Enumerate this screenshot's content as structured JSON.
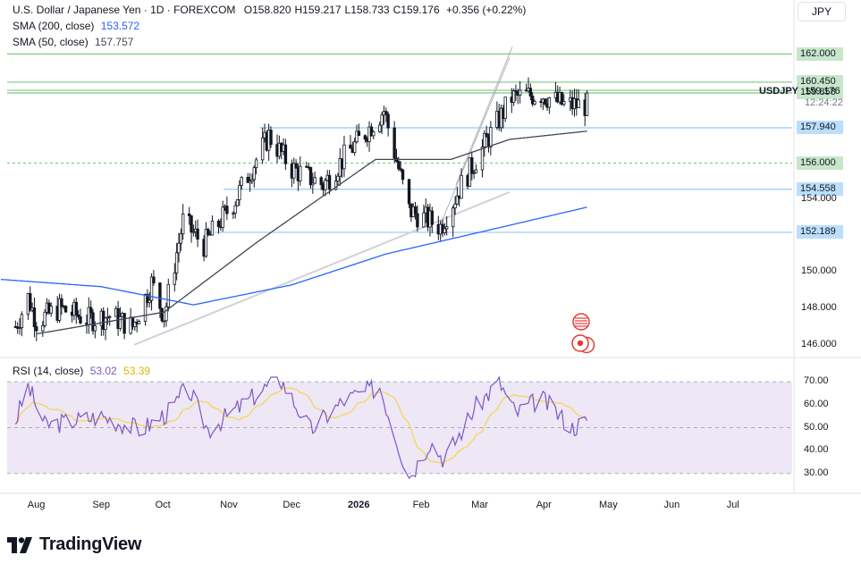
{
  "header": {
    "symbol_title": "U.S. Dollar / Japanese Yen · 1D · FOREXCOM",
    "ohlc": [
      {
        "k": "O",
        "v": "158.820"
      },
      {
        "k": "H",
        "v": "159.217"
      },
      {
        "k": "L",
        "v": "158.733"
      },
      {
        "k": "C",
        "v": "159.176"
      }
    ],
    "change": "+0.356 (+0.22%)",
    "sma200_label": "SMA (200, close)",
    "sma200_value": "153.572",
    "sma50_label": "SMA (50, close)",
    "sma50_value": "157.757"
  },
  "currency_button": "JPY",
  "price_axis": {
    "ticks": [
      "154.000",
      "150.000",
      "148.000",
      "146.000"
    ],
    "ticker": "USDJPY",
    "last_price": "159.176",
    "countdown": "12:24:22",
    "level_labels": [
      {
        "value": "162.000",
        "price": 162.0,
        "bg": "#c8e6c9"
      },
      {
        "value": "160.450",
        "price": 160.45,
        "bg": "#c8e6c9"
      },
      {
        "value": "160.000",
        "price": 160.0,
        "bg": "#c8e6c9"
      },
      {
        "value": "159.858",
        "price": 159.858,
        "bg": "#c8e6c9"
      },
      {
        "value": "157.940",
        "price": 157.94,
        "bg": "#bbdefb"
      },
      {
        "value": "156.000",
        "price": 156.0,
        "bg": "#c8e6c9"
      },
      {
        "value": "154.558",
        "price": 154.558,
        "bg": "#bbdefb"
      },
      {
        "value": "152.189",
        "price": 152.189,
        "bg": "#bbdefb"
      }
    ]
  },
  "rsi": {
    "label": "RSI (14, close)",
    "value": "53.02",
    "ma_value": "53.39",
    "ticks": [
      "70.00",
      "60.00",
      "50.00",
      "40.00",
      "30.00"
    ]
  },
  "time_axis": [
    "Aug",
    "Sep",
    "Oct",
    "Nov",
    "Dec",
    "2026",
    "Feb",
    "Mar",
    "Apr",
    "May",
    "Jun",
    "Jul"
  ],
  "branding": "TradingView",
  "colors": {
    "up": "#131722",
    "down": "#131722",
    "sma50": "#434651",
    "sma200": "#2962ff",
    "rsi_line": "#7e57c2",
    "rsi_ma": "#f7d54a",
    "green_level": "#81c784",
    "blue_level": "#90caf9",
    "rsi_band": "#ede7f6"
  },
  "chart_data": {
    "type": "candlestick",
    "title": "U.S. Dollar / Japanese Yen · 1D · FOREXCOM",
    "ylim": [
      145.5,
      163.2
    ],
    "months": [
      "Aug",
      "Sep",
      "Oct",
      "Nov",
      "Dec",
      "2026",
      "Feb",
      "Mar",
      "Apr",
      "May",
      "Jun",
      "Jul"
    ],
    "close_path": [
      {
        "date": "2025-07-22",
        "close": 147.0
      },
      {
        "date": "2025-07-28",
        "close": 148.6
      },
      {
        "date": "2025-08-01",
        "close": 147.3
      },
      {
        "date": "2025-08-12",
        "close": 148.0
      },
      {
        "date": "2025-08-26",
        "close": 147.4
      },
      {
        "date": "2025-09-05",
        "close": 147.6
      },
      {
        "date": "2025-09-16",
        "close": 147.0
      },
      {
        "date": "2025-09-25",
        "close": 149.4
      },
      {
        "date": "2025-10-01",
        "close": 147.6
      },
      {
        "date": "2025-10-10",
        "close": 152.8
      },
      {
        "date": "2025-10-20",
        "close": 151.5
      },
      {
        "date": "2025-11-04",
        "close": 154.0
      },
      {
        "date": "2025-11-20",
        "close": 157.5
      },
      {
        "date": "2025-12-01",
        "close": 155.7
      },
      {
        "date": "2025-12-16",
        "close": 154.8
      },
      {
        "date": "2025-12-26",
        "close": 156.3
      },
      {
        "date": "2026-01-14",
        "close": 158.9
      },
      {
        "date": "2026-01-26",
        "close": 153.4
      },
      {
        "date": "2026-02-10",
        "close": 152.5
      },
      {
        "date": "2026-02-20",
        "close": 154.8
      },
      {
        "date": "2026-03-05",
        "close": 157.4
      },
      {
        "date": "2026-03-16",
        "close": 159.6
      },
      {
        "date": "2026-03-30",
        "close": 159.8
      },
      {
        "date": "2026-04-10",
        "close": 159.2
      },
      {
        "date": "2026-04-21",
        "close": 159.176
      }
    ],
    "sma200": [
      {
        "date": "2025-07-15",
        "value": 149.6
      },
      {
        "date": "2025-09-01",
        "value": 149.2
      },
      {
        "date": "2025-10-15",
        "value": 148.2
      },
      {
        "date": "2025-12-01",
        "value": 149.3
      },
      {
        "date": "2026-01-15",
        "value": 151.0
      },
      {
        "date": "2026-03-01",
        "value": 152.2
      },
      {
        "date": "2026-04-21",
        "value": 153.572
      }
    ],
    "sma50": [
      {
        "date": "2025-08-01",
        "value": 146.6
      },
      {
        "date": "2025-10-01",
        "value": 147.8
      },
      {
        "date": "2025-11-15",
        "value": 151.7
      },
      {
        "date": "2026-01-10",
        "value": 156.2
      },
      {
        "date": "2026-02-15",
        "value": 156.2
      },
      {
        "date": "2026-03-15",
        "value": 157.3
      },
      {
        "date": "2026-04-21",
        "value": 157.757
      }
    ],
    "horizontal_levels": [
      162.0,
      160.45,
      160.0,
      159.858,
      157.94,
      156.0,
      154.558,
      152.189
    ],
    "rsi": {
      "ylim": [
        28,
        72
      ],
      "last": 53.02,
      "ma_last": 53.39,
      "path": [
        {
          "date": "2025-07-22",
          "value": 53
        },
        {
          "date": "2025-07-28",
          "value": 68
        },
        {
          "date": "2025-08-05",
          "value": 51
        },
        {
          "date": "2025-09-01",
          "value": 55
        },
        {
          "date": "2025-09-20",
          "value": 49
        },
        {
          "date": "2025-10-05",
          "value": 58
        },
        {
          "date": "2025-10-12",
          "value": 68
        },
        {
          "date": "2025-10-22",
          "value": 49
        },
        {
          "date": "2025-11-12",
          "value": 63
        },
        {
          "date": "2025-11-25",
          "value": 72
        },
        {
          "date": "2025-12-10",
          "value": 49
        },
        {
          "date": "2025-12-26",
          "value": 62
        },
        {
          "date": "2026-01-12",
          "value": 68
        },
        {
          "date": "2026-01-26",
          "value": 28
        },
        {
          "date": "2026-02-05",
          "value": 44
        },
        {
          "date": "2026-02-12",
          "value": 36
        },
        {
          "date": "2026-02-26",
          "value": 58
        },
        {
          "date": "2026-03-10",
          "value": 70
        },
        {
          "date": "2026-03-18",
          "value": 56
        },
        {
          "date": "2026-03-30",
          "value": 63
        },
        {
          "date": "2026-04-14",
          "value": 50
        },
        {
          "date": "2026-04-21",
          "value": 53.02
        }
      ]
    }
  }
}
